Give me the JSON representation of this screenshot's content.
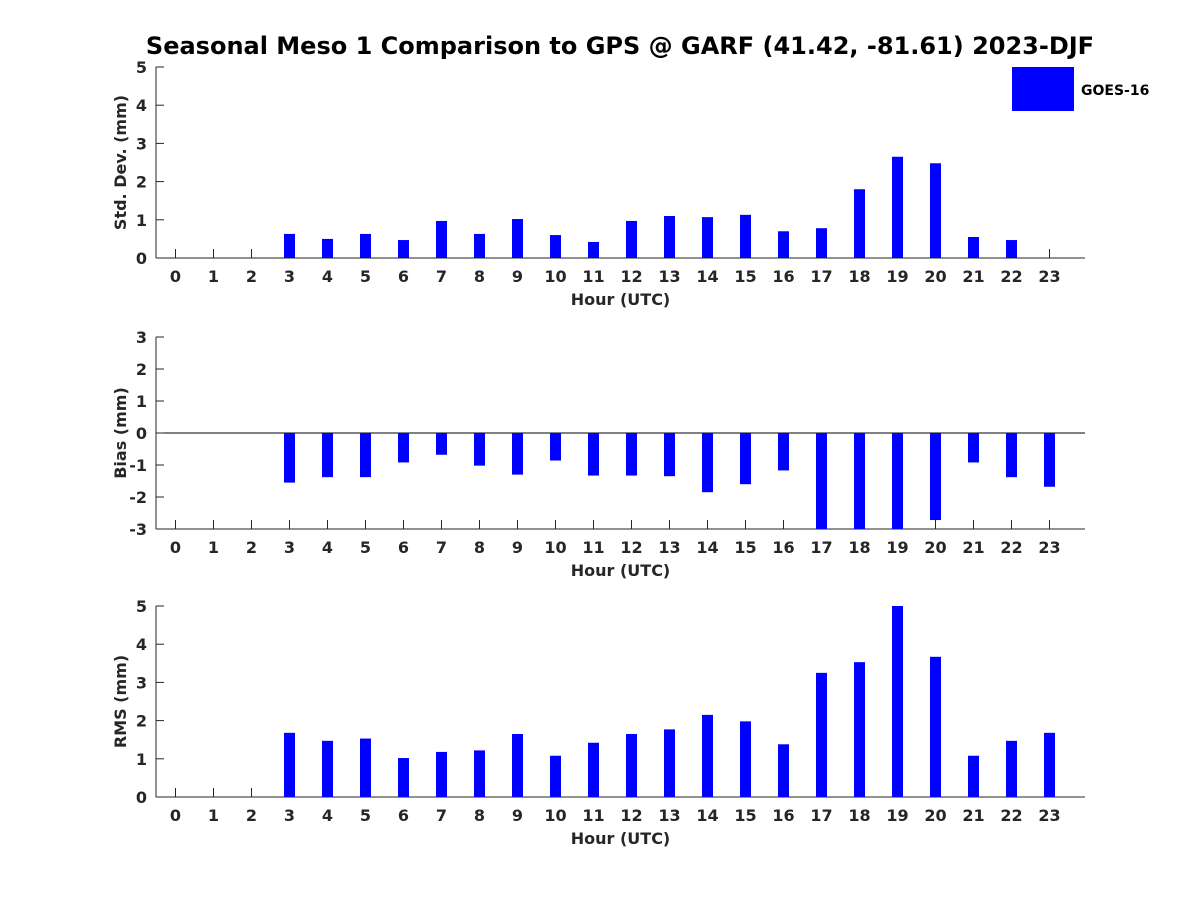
{
  "title": "Seasonal Meso 1 Comparison to GPS @ GARF (41.42, -81.61) 2023-DJF",
  "legend": {
    "label": "GOES-16",
    "color": "#0000ff"
  },
  "chart_data": [
    {
      "type": "bar",
      "categories": [
        "0",
        "1",
        "2",
        "3",
        "4",
        "5",
        "6",
        "7",
        "8",
        "9",
        "10",
        "11",
        "12",
        "13",
        "14",
        "15",
        "16",
        "17",
        "18",
        "19",
        "20",
        "21",
        "22",
        "23"
      ],
      "series": [
        {
          "name": "GOES-16",
          "values": [
            null,
            null,
            null,
            0.63,
            0.5,
            0.63,
            0.47,
            0.97,
            0.63,
            1.02,
            0.6,
            0.42,
            0.97,
            1.1,
            1.07,
            1.13,
            0.7,
            0.78,
            1.8,
            2.65,
            2.48,
            0.55,
            0.47,
            null
          ]
        }
      ],
      "xlabel": "Hour (UTC)",
      "ylabel": "Std. Dev. (mm)",
      "ylim": [
        0,
        5
      ],
      "yticks": [
        0,
        1,
        2,
        3,
        4,
        5
      ],
      "grid": false,
      "legend_position": "top-right"
    },
    {
      "type": "bar",
      "categories": [
        "0",
        "1",
        "2",
        "3",
        "4",
        "5",
        "6",
        "7",
        "8",
        "9",
        "10",
        "11",
        "12",
        "13",
        "14",
        "15",
        "16",
        "17",
        "18",
        "19",
        "20",
        "21",
        "22",
        "23"
      ],
      "series": [
        {
          "name": "GOES-16",
          "values": [
            null,
            null,
            null,
            -1.55,
            -1.38,
            -1.38,
            -0.92,
            -0.68,
            -1.02,
            -1.3,
            -0.86,
            -1.33,
            -1.33,
            -1.35,
            -1.85,
            -1.6,
            -1.17,
            -3.0,
            -3.0,
            -3.0,
            -2.72,
            -0.92,
            -1.38,
            -1.68
          ]
        }
      ],
      "xlabel": "Hour (UTC)",
      "ylabel": "Bias (mm)",
      "ylim": [
        -3,
        3
      ],
      "yticks": [
        -3,
        -2,
        -1,
        0,
        1,
        2,
        3
      ],
      "grid": false
    },
    {
      "type": "bar",
      "categories": [
        "0",
        "1",
        "2",
        "3",
        "4",
        "5",
        "6",
        "7",
        "8",
        "9",
        "10",
        "11",
        "12",
        "13",
        "14",
        "15",
        "16",
        "17",
        "18",
        "19",
        "20",
        "21",
        "22",
        "23"
      ],
      "series": [
        {
          "name": "GOES-16",
          "values": [
            null,
            null,
            null,
            1.68,
            1.47,
            1.53,
            1.02,
            1.18,
            1.22,
            1.65,
            1.08,
            1.42,
            1.65,
            1.77,
            2.15,
            1.98,
            1.38,
            3.25,
            3.53,
            5.0,
            3.67,
            1.08,
            1.47,
            1.68
          ]
        }
      ],
      "xlabel": "Hour (UTC)",
      "ylabel": "RMS (mm)",
      "ylim": [
        0,
        5
      ],
      "yticks": [
        0,
        1,
        2,
        3,
        4,
        5
      ],
      "grid": false
    }
  ]
}
